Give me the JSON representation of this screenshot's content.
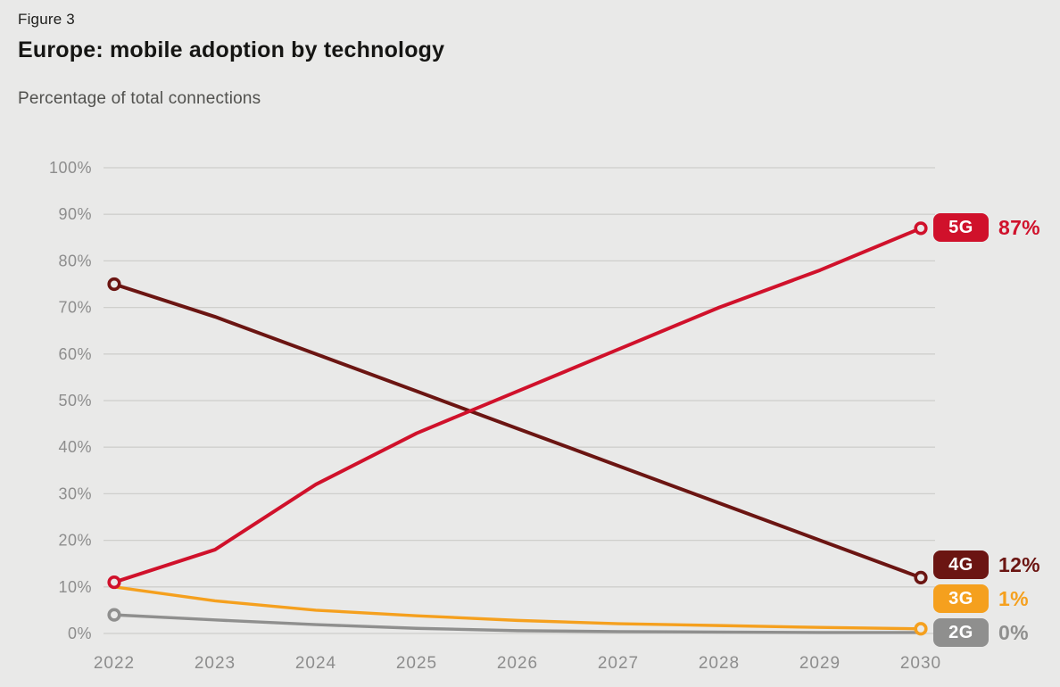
{
  "header": {
    "figure_label": "Figure 3",
    "title": "Europe: mobile adoption by technology",
    "subtitle": "Percentage of total connections"
  },
  "colors": {
    "background": "#e9e9e8",
    "gridline": "#cfcfcc",
    "axis_text": "#8d8d8d"
  },
  "chart_data": {
    "type": "line",
    "title": "Europe: mobile adoption by technology",
    "subtitle": "Percentage of total connections",
    "categories": [
      "2022",
      "2023",
      "2024",
      "2025",
      "2026",
      "2027",
      "2028",
      "2029",
      "2030"
    ],
    "xlabel": "",
    "ylabel": "Percentage of total connections",
    "ylim": [
      0,
      100
    ],
    "yticks": [
      {
        "value": 0,
        "label": "0%"
      },
      {
        "value": 10,
        "label": "10%"
      },
      {
        "value": 20,
        "label": "20%"
      },
      {
        "value": 30,
        "label": "30%"
      },
      {
        "value": 40,
        "label": "40%"
      },
      {
        "value": 50,
        "label": "50%"
      },
      {
        "value": 60,
        "label": "60%"
      },
      {
        "value": 70,
        "label": "70%"
      },
      {
        "value": 80,
        "label": "80%"
      },
      {
        "value": 90,
        "label": "90%"
      },
      {
        "value": 100,
        "label": "100%"
      }
    ],
    "grid": true,
    "legend_position": "right-badges",
    "series": [
      {
        "name": "5G",
        "color": "#d0112b",
        "end_label": "87%",
        "markers": [
          "start",
          "end"
        ],
        "values": [
          11,
          18,
          32,
          43,
          52,
          61,
          70,
          78,
          87
        ]
      },
      {
        "name": "4G",
        "color": "#6b1512",
        "end_label": "12%",
        "markers": [
          "start",
          "end"
        ],
        "values": [
          75,
          68,
          60,
          52,
          44,
          36,
          28,
          20,
          12
        ]
      },
      {
        "name": "3G",
        "color": "#f5a01e",
        "end_label": "1%",
        "markers": [
          "end"
        ],
        "values": [
          10,
          7,
          5,
          3.8,
          2.8,
          2.1,
          1.7,
          1.3,
          1
        ]
      },
      {
        "name": "2G",
        "color": "#8f8f8e",
        "end_label": "0%",
        "markers": [
          "start"
        ],
        "values": [
          4,
          2.9,
          1.9,
          1.1,
          0.6,
          0.4,
          0.3,
          0.2,
          0.2
        ]
      }
    ]
  }
}
